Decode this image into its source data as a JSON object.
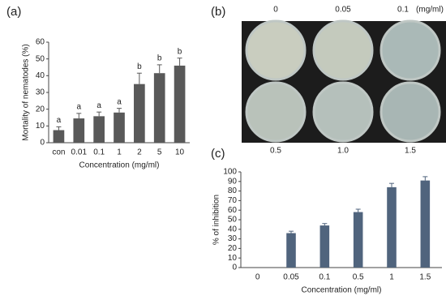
{
  "chart_data": [
    {
      "type": "bar",
      "panel_label": "(a)",
      "x_label": "Concentration (mg/ml)",
      "y_label": "Mortality of nematodes (%)",
      "categories": [
        "con",
        "0.01",
        "0.1",
        "1",
        "2",
        "5",
        "10"
      ],
      "values": [
        7.5,
        14.5,
        15.8,
        18,
        35,
        41.5,
        46
      ],
      "errors": [
        2,
        3,
        2.5,
        2.5,
        6.5,
        5,
        4.5
      ],
      "letters": [
        "a",
        "a",
        "a",
        "a",
        "b",
        "b",
        "b"
      ],
      "color": "#595959",
      "ylim": [
        0,
        60
      ],
      "yticks": [
        0,
        10,
        20,
        30,
        40,
        50,
        60
      ]
    },
    {
      "type": "bar",
      "panel_label": "(c)",
      "x_label": "Concentration (mg/ml)",
      "y_label": "% of inhibition",
      "categories": [
        "0",
        "0.05",
        "0.1",
        "0.5",
        "1",
        "1.5"
      ],
      "values": [
        0,
        36,
        44,
        58,
        84,
        91
      ],
      "errors": [
        null,
        2,
        2,
        3,
        4,
        4
      ],
      "color": "#50647d",
      "ylim": [
        0,
        100
      ],
      "yticks": [
        0,
        10,
        20,
        30,
        40,
        50,
        60,
        70,
        80,
        90,
        100
      ]
    }
  ],
  "photo_panel": {
    "panel_label": "(b)",
    "top_labels": [
      "0",
      "0.05",
      "0.1"
    ],
    "unit": "(mg/ml)",
    "bottom_labels": [
      "0.5",
      "1.0",
      "1.5"
    ]
  }
}
